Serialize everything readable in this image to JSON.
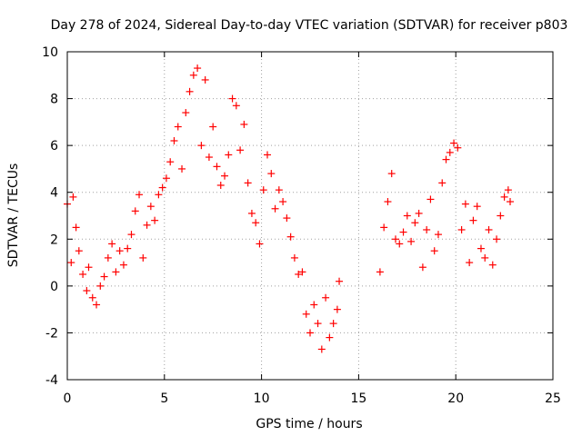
{
  "chart_data": {
    "type": "scatter",
    "title": "Day 278 of 2024, Sidereal Day-to-day VTEC variation (SDTVAR) for receiver p803",
    "xlabel": "GPS time / hours",
    "ylabel": "SDTVAR / TECUs",
    "xlim": [
      0,
      25
    ],
    "ylim": [
      -4,
      10
    ],
    "xticks": [
      0,
      5,
      10,
      15,
      20,
      25
    ],
    "yticks": [
      -4,
      -2,
      0,
      2,
      4,
      6,
      8,
      10
    ],
    "grid": true,
    "marker": "plus",
    "color": "#ff0000",
    "series": [
      {
        "name": "SDTVAR",
        "x": [
          0.0,
          0.2,
          0.3,
          0.45,
          0.6,
          0.8,
          1.0,
          1.1,
          1.3,
          1.5,
          1.7,
          1.9,
          2.1,
          2.3,
          2.5,
          2.7,
          2.9,
          3.1,
          3.3,
          3.5,
          3.7,
          3.9,
          4.1,
          4.3,
          4.5,
          4.7,
          4.9,
          5.1,
          5.3,
          5.5,
          5.7,
          5.9,
          6.1,
          6.3,
          6.5,
          6.7,
          6.9,
          7.1,
          7.3,
          7.5,
          7.7,
          7.9,
          8.1,
          8.3,
          8.5,
          8.7,
          8.9,
          9.1,
          9.3,
          9.5,
          9.7,
          9.9,
          10.1,
          10.3,
          10.5,
          10.7,
          10.9,
          11.1,
          11.3,
          11.5,
          11.7,
          11.9,
          12.1,
          12.3,
          12.5,
          12.7,
          12.9,
          13.1,
          13.3,
          13.5,
          13.7,
          13.9,
          14.0,
          16.1,
          16.3,
          16.5,
          16.7,
          16.9,
          17.1,
          17.3,
          17.5,
          17.7,
          17.9,
          18.1,
          18.3,
          18.5,
          18.7,
          18.9,
          19.1,
          19.3,
          19.5,
          19.7,
          19.9,
          20.1,
          20.3,
          20.5,
          20.7,
          20.9,
          21.1,
          21.3,
          21.5,
          21.7,
          21.9,
          22.1,
          22.3,
          22.5,
          22.7,
          22.8
        ],
        "y": [
          3.5,
          1.0,
          3.8,
          2.5,
          1.5,
          0.5,
          -0.2,
          0.8,
          -0.5,
          -0.8,
          0.0,
          0.4,
          1.2,
          1.8,
          0.6,
          1.5,
          0.9,
          1.6,
          2.2,
          3.2,
          3.9,
          1.2,
          2.6,
          3.4,
          2.8,
          3.9,
          4.2,
          4.6,
          5.3,
          6.2,
          6.8,
          5.0,
          7.4,
          8.3,
          9.0,
          9.3,
          6.0,
          8.8,
          5.5,
          6.8,
          5.1,
          4.3,
          4.7,
          5.6,
          8.0,
          7.7,
          5.8,
          6.9,
          4.4,
          3.1,
          2.7,
          1.8,
          4.1,
          5.6,
          4.8,
          3.3,
          4.1,
          3.6,
          2.9,
          2.1,
          1.2,
          0.5,
          0.6,
          -1.2,
          -2.0,
          -0.8,
          -1.6,
          -2.7,
          -0.5,
          -2.2,
          -1.6,
          -1.0,
          0.2,
          0.6,
          2.5,
          3.6,
          4.8,
          2.0,
          1.8,
          2.3,
          3.0,
          1.9,
          2.7,
          3.1,
          0.8,
          2.4,
          3.7,
          1.5,
          2.2,
          4.4,
          5.4,
          5.7,
          6.1,
          5.9,
          2.4,
          3.5,
          1.0,
          2.8,
          3.4,
          1.6,
          1.2,
          2.4,
          0.9,
          2.0,
          3.0,
          3.8,
          4.1,
          3.6
        ]
      }
    ]
  }
}
